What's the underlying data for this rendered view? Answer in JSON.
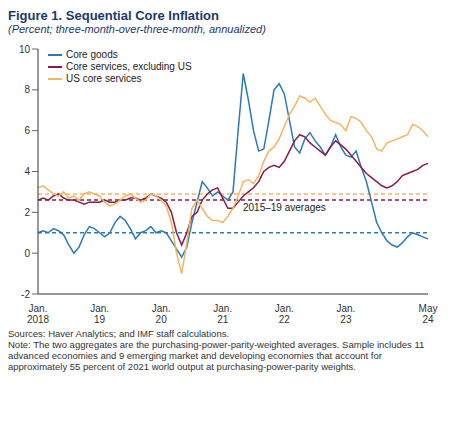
{
  "chart_data": {
    "type": "line",
    "title": "Figure 1. Sequential Core Inflation",
    "subtitle": "(Percent; three-month-over-three-month, annualized)",
    "categories": [
      "Jan. 2018",
      null,
      null,
      null,
      null,
      null,
      null,
      null,
      null,
      null,
      null,
      null,
      "Jan. 19",
      null,
      null,
      null,
      null,
      null,
      null,
      null,
      null,
      null,
      null,
      null,
      "Jan. 20",
      null,
      null,
      null,
      null,
      null,
      null,
      null,
      null,
      null,
      null,
      null,
      "Jan. 21",
      null,
      null,
      null,
      null,
      null,
      null,
      null,
      null,
      null,
      null,
      null,
      "Jan. 22",
      null,
      null,
      null,
      null,
      null,
      null,
      null,
      null,
      null,
      null,
      null,
      "Jan. 23",
      null,
      null,
      null,
      null,
      null,
      null,
      null,
      null,
      null,
      null,
      null,
      null,
      null,
      null,
      null,
      "May 24"
    ],
    "series": [
      {
        "name": "Core goods",
        "color": "#2a7ab8",
        "values": [
          1.0,
          1.1,
          1.0,
          1.2,
          1.1,
          0.9,
          0.4,
          0.0,
          0.3,
          0.9,
          1.3,
          1.2,
          1.0,
          0.8,
          1.0,
          1.5,
          1.8,
          1.6,
          1.2,
          0.7,
          1.0,
          1.1,
          1.3,
          1.0,
          1.1,
          1.0,
          0.6,
          0.2,
          -0.2,
          0.3,
          1.5,
          2.5,
          3.5,
          3.2,
          2.8,
          3.0,
          2.8,
          2.6,
          3.0,
          6.0,
          8.8,
          7.5,
          6.0,
          5.0,
          5.1,
          6.5,
          8.0,
          8.3,
          7.8,
          6.5,
          5.2,
          4.9,
          5.6,
          5.9,
          5.5,
          5.2,
          4.8,
          5.2,
          5.8,
          5.2,
          4.8,
          4.7,
          5.0,
          4.2,
          3.5,
          2.5,
          1.5,
          1.0,
          0.6,
          0.4,
          0.3,
          0.5,
          0.8,
          1.0,
          0.9,
          0.8,
          0.7
        ]
      },
      {
        "name": "Core services, excluding US",
        "color": "#8b1a4a",
        "values": [
          2.6,
          2.7,
          2.6,
          2.8,
          2.9,
          2.7,
          2.6,
          2.6,
          2.5,
          2.4,
          2.5,
          2.5,
          2.5,
          2.6,
          2.5,
          2.5,
          2.6,
          2.6,
          2.7,
          2.7,
          2.6,
          2.7,
          2.9,
          2.8,
          2.7,
          2.5,
          2.0,
          1.0,
          0.4,
          1.0,
          1.8,
          2.0,
          2.6,
          2.9,
          3.1,
          3.2,
          2.7,
          2.2,
          2.2,
          2.5,
          2.8,
          3.0,
          3.2,
          3.5,
          4.0,
          4.2,
          4.3,
          4.2,
          4.5,
          5.0,
          5.5,
          5.8,
          5.7,
          5.4,
          5.2,
          5.0,
          4.8,
          5.2,
          5.5,
          5.3,
          5.1,
          4.8,
          4.5,
          4.2,
          3.9,
          3.7,
          3.5,
          3.3,
          3.2,
          3.3,
          3.5,
          3.8,
          3.9,
          4.0,
          4.1,
          4.3,
          4.4
        ]
      },
      {
        "name": "US core services",
        "color": "#f2b661",
        "values": [
          3.2,
          3.3,
          3.1,
          2.9,
          2.8,
          3.0,
          2.7,
          2.8,
          2.6,
          2.9,
          3.0,
          2.9,
          2.8,
          2.5,
          2.3,
          2.4,
          2.6,
          2.8,
          2.9,
          2.7,
          2.5,
          2.6,
          2.9,
          2.8,
          2.6,
          2.3,
          1.5,
          0.0,
          -1.0,
          0.5,
          2.2,
          2.6,
          2.2,
          1.8,
          1.6,
          1.6,
          1.5,
          1.8,
          2.2,
          2.8,
          3.5,
          3.6,
          3.4,
          3.8,
          4.5,
          5.0,
          5.2,
          5.6,
          6.2,
          6.8,
          7.2,
          7.7,
          7.6,
          7.4,
          7.6,
          7.2,
          6.8,
          6.5,
          6.4,
          6.3,
          6.0,
          6.7,
          6.6,
          6.4,
          6.0,
          5.7,
          5.1,
          5.0,
          5.4,
          5.5,
          5.6,
          5.7,
          5.8,
          6.3,
          6.2,
          6.0,
          5.7
        ]
      }
    ],
    "averages": [
      {
        "value": 2.9,
        "color": "#f2b661",
        "line_style": "dashed"
      },
      {
        "value": 2.6,
        "color": "#8b1a4a",
        "line_style": "dashed"
      },
      {
        "value": 1.0,
        "color": "#2a7ab8",
        "line_style": "dashed"
      }
    ],
    "annotations": [
      "2015–19 averages"
    ],
    "ylim": [
      -2,
      10
    ],
    "yticks": [
      -2,
      0,
      2,
      4,
      6,
      8,
      10
    ],
    "grid": false,
    "legend": "top-left",
    "notes": [
      "Sources: Haver Analytics; and IMF staff calculations.",
      "Note: The two aggregates are the purchasing-power-parity-weighted averages. Sample includes 11 advanced economies and 9 emerging market and developing economies that account for approximately 55 percent of 2021 world output at purchasing-power-parity weights."
    ]
  }
}
